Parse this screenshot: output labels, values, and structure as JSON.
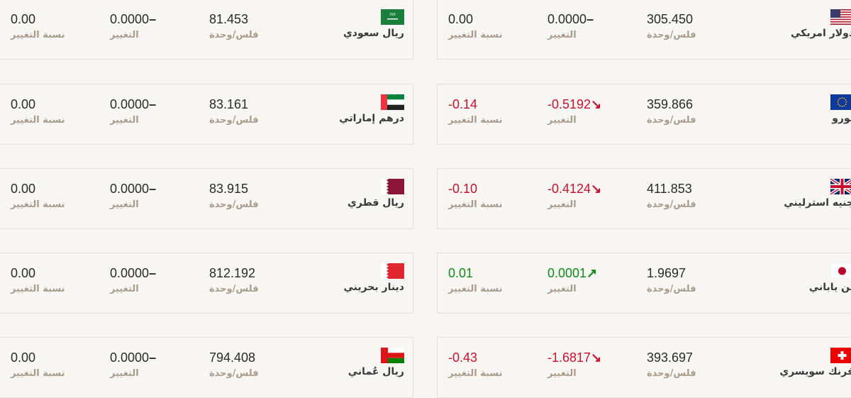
{
  "labels": {
    "unit": "فلس/وحدة",
    "change": "التغيير",
    "change_pct": "نسبة التغيير"
  },
  "colors": {
    "negative": "#c8102e",
    "positive": "#15881a",
    "neutral": "#2b2b2b",
    "label": "#a99b8c"
  },
  "left_column": [
    {
      "name": "ريال سعودي",
      "flag": "sa",
      "price": "81.453",
      "change": "0.0000",
      "change_icon": "dash",
      "change_pct": "0.00",
      "trend": "flat"
    },
    {
      "name": "درهم إماراتي",
      "flag": "ae",
      "price": "83.161",
      "change": "0.0000",
      "change_icon": "dash",
      "change_pct": "0.00",
      "trend": "flat"
    },
    {
      "name": "ريال قطري",
      "flag": "qa",
      "price": "83.915",
      "change": "0.0000",
      "change_icon": "dash",
      "change_pct": "0.00",
      "trend": "flat"
    },
    {
      "name": "دينار بحريني",
      "flag": "bh",
      "price": "812.192",
      "change": "0.0000",
      "change_icon": "dash",
      "change_pct": "0.00",
      "trend": "flat"
    },
    {
      "name": "ريال عُماني",
      "flag": "om",
      "price": "794.408",
      "change": "0.0000",
      "change_icon": "dash",
      "change_pct": "0.00",
      "trend": "flat"
    }
  ],
  "right_column": [
    {
      "name": "دولار امريكي",
      "flag": "us",
      "price": "305.450",
      "change": "0.0000",
      "change_icon": "dash",
      "change_pct": "0.00",
      "trend": "flat"
    },
    {
      "name": "يورو",
      "flag": "eu",
      "price": "359.866",
      "change": "-0.5192",
      "change_icon": "arrow-down-right",
      "change_pct": "-0.14",
      "trend": "down"
    },
    {
      "name": "جنيه استرليني",
      "flag": "gb",
      "price": "411.853",
      "change": "-0.4124",
      "change_icon": "arrow-down-right",
      "change_pct": "-0.10",
      "trend": "down"
    },
    {
      "name": "ين ياباني",
      "flag": "jp",
      "price": "1.9697",
      "change": "0.0001",
      "change_icon": "arrow-up-right",
      "change_pct": "0.01",
      "trend": "up"
    },
    {
      "name": "فرنك سويسري",
      "flag": "ch",
      "price": "393.697",
      "change": "-1.6817",
      "change_icon": "arrow-down-right",
      "change_pct": "-0.43",
      "trend": "down"
    }
  ]
}
